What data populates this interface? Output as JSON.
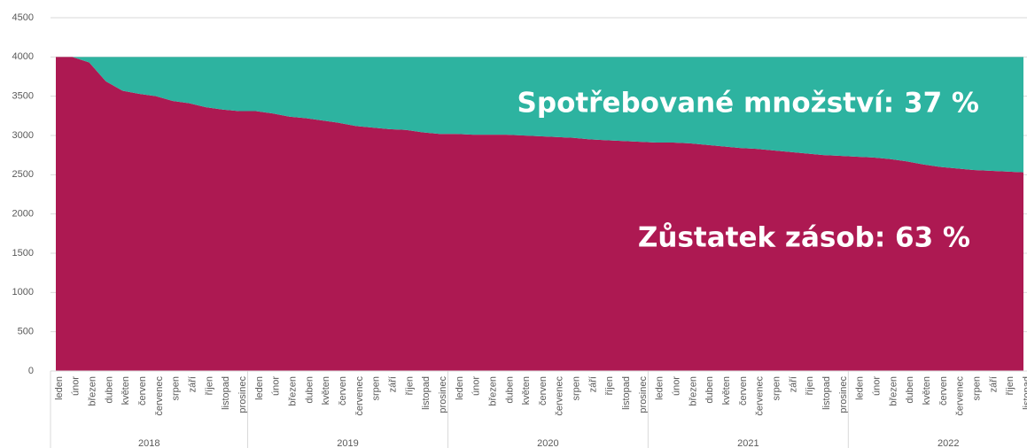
{
  "chart_data": {
    "type": "stacked_area",
    "categories": [
      "leden",
      "únor",
      "březen",
      "duben",
      "květen",
      "červen",
      "červenec",
      "srpen",
      "září",
      "říjen",
      "listopad",
      "prosinec",
      "leden",
      "únor",
      "březen",
      "duben",
      "květen",
      "červen",
      "červenec",
      "srpen",
      "září",
      "říjen",
      "listopad",
      "prosinec",
      "leden",
      "únor",
      "březen",
      "duben",
      "květen",
      "červen",
      "červenec",
      "srpen",
      "září",
      "říjen",
      "listopad",
      "prosinec",
      "leden",
      "únor",
      "březen",
      "duben",
      "květen",
      "červen",
      "červenec",
      "srpen",
      "září",
      "říjen",
      "listopad",
      "prosinec",
      "leden",
      "únor",
      "březen",
      "duben",
      "květen",
      "červen",
      "červenec",
      "srpen",
      "září",
      "říjen",
      "listopad"
    ],
    "category_groups": [
      "2018",
      "2019",
      "2020",
      "2021",
      "2022"
    ],
    "series": [
      {
        "color": "#ad1952",
        "values": [
          4000,
          4000,
          3930,
          3690,
          3570,
          3530,
          3500,
          3440,
          3410,
          3360,
          3330,
          3310,
          3310,
          3280,
          3240,
          3220,
          3190,
          3160,
          3120,
          3100,
          3080,
          3070,
          3040,
          3020,
          3020,
          3010,
          3010,
          3010,
          3000,
          2990,
          2980,
          2970,
          2950,
          2940,
          2930,
          2920,
          2910,
          2910,
          2900,
          2880,
          2860,
          2840,
          2830,
          2810,
          2790,
          2770,
          2750,
          2740,
          2730,
          2720,
          2700,
          2670,
          2630,
          2600,
          2580,
          2560,
          2550,
          2540,
          2530
        ]
      },
      {
        "color": "#2db3a0",
        "values": [
          0,
          0,
          70,
          310,
          430,
          470,
          500,
          560,
          590,
          640,
          670,
          690,
          690,
          720,
          760,
          780,
          810,
          840,
          880,
          900,
          920,
          930,
          960,
          980,
          980,
          990,
          990,
          990,
          1000,
          1010,
          1020,
          1030,
          1050,
          1060,
          1070,
          1080,
          1090,
          1090,
          1100,
          1120,
          1140,
          1160,
          1170,
          1190,
          1210,
          1230,
          1250,
          1260,
          1270,
          1280,
          1300,
          1330,
          1370,
          1400,
          1420,
          1440,
          1450,
          1460,
          1470
        ]
      }
    ],
    "annotations": [
      "Spotřebované množství: 37 %",
      "Zůstatek zásob: 63 %"
    ],
    "ylim": [
      0,
      4500
    ],
    "yticks": [
      0,
      500,
      1000,
      1500,
      2000,
      2500,
      3000,
      3500,
      4000,
      4500
    ],
    "grid": true
  }
}
